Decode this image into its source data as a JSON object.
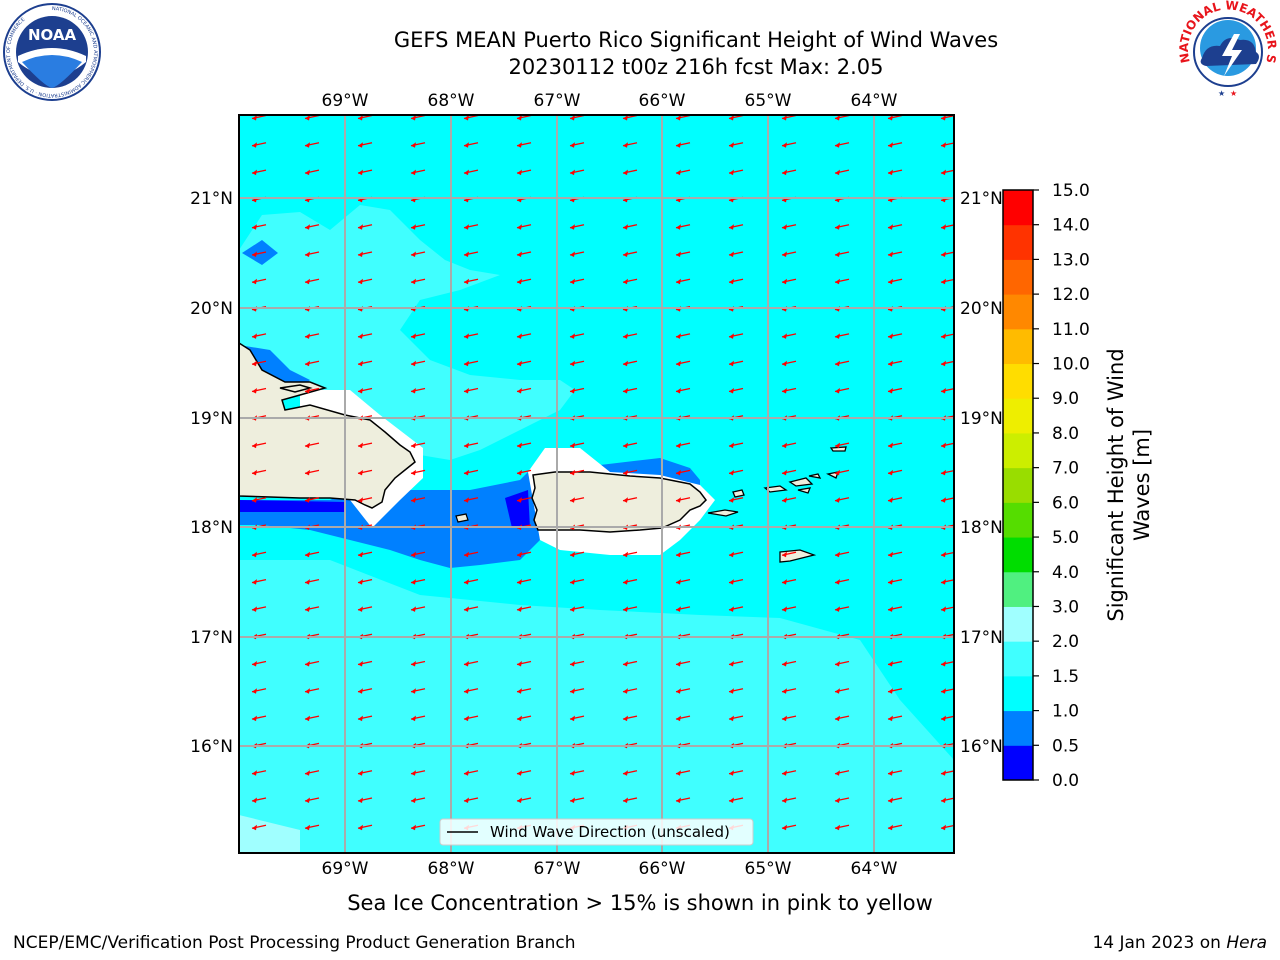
{
  "header": {
    "title": "GEFS MEAN Puerto Rico Significant Height of Wind Waves",
    "subtitle": "20230112 t00z 216h fcst   Max: 2.05"
  },
  "logos": {
    "noaa_text": "NOAA",
    "noaa_ring": "NATIONAL OCEANIC AND ATMOSPHERIC ADMINISTRATION · U.S. DEPARTMENT OF COMMERCE",
    "nws_ring": "NATIONAL WEATHER SERVICE"
  },
  "map": {
    "lon_labels": [
      "69°W",
      "68°W",
      "67°W",
      "66°W",
      "65°W",
      "64°W"
    ],
    "lat_labels": [
      "21°N",
      "20°N",
      "19°N",
      "18°N",
      "17°N",
      "16°N"
    ],
    "legend_label": "Wind Wave Direction (unscaled)",
    "arrow_color": "#ff0000",
    "sea_color": "#00ffff",
    "land_color": "#eeeedd"
  },
  "colorbar": {
    "label": "Significant Height of Wind Waves [m]",
    "label_line1": "Significant Height of Wind",
    "label_line2": "Waves [m]",
    "ticks": [
      "0.0",
      "0.5",
      "1.0",
      "1.5",
      "2.0",
      "3.0",
      "4.0",
      "5.0",
      "6.0",
      "7.0",
      "8.0",
      "9.0",
      "10.0",
      "11.0",
      "12.0",
      "13.0",
      "14.0",
      "15.0"
    ],
    "colors": [
      "#0000ff",
      "#0080ff",
      "#00ffff",
      "#40ffff",
      "#a0ffff",
      "#50f080",
      "#00dd00",
      "#55dd00",
      "#99dd00",
      "#ccee00",
      "#eeee00",
      "#ffdd00",
      "#ffbb00",
      "#ff8800",
      "#ff6600",
      "#ff3300",
      "#ff0000"
    ]
  },
  "footer": {
    "ice_note": "Sea Ice Concentration > 15% is shown in pink to yellow",
    "credit": "NCEP/EMC/Verification Post Processing Product Generation Branch",
    "date": "14 Jan 2023 on",
    "host": "Hera"
  }
}
